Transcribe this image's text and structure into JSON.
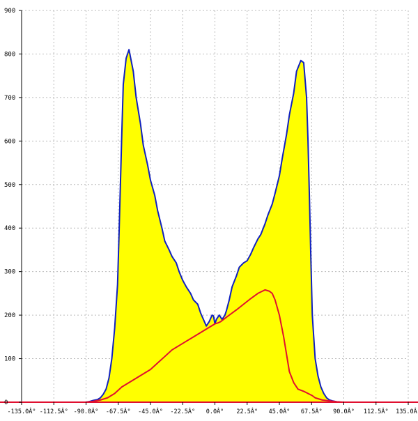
{
  "chart_data": {
    "type": "area",
    "title": "",
    "xlabel": "",
    "ylabel": "",
    "xlim": [
      -135,
      135
    ],
    "ylim": [
      0,
      900
    ],
    "x_ticks": [
      {
        "value": -135,
        "label": "-135.0Â°"
      },
      {
        "value": -112.5,
        "label": "-112.5Â°"
      },
      {
        "value": -90,
        "label": "-90.0Â°"
      },
      {
        "value": -67.5,
        "label": "-67.5Â°"
      },
      {
        "value": -45,
        "label": "-45.0Â°"
      },
      {
        "value": -22.5,
        "label": "-22.5Â°"
      },
      {
        "value": 0,
        "label": "0.0Â°"
      },
      {
        "value": 22.5,
        "label": "22.5Â°"
      },
      {
        "value": 45,
        "label": "45.0Â°"
      },
      {
        "value": 67.5,
        "label": "67.5Â°"
      },
      {
        "value": 90,
        "label": "90.0Â°"
      },
      {
        "value": 112.5,
        "label": "112.5Â°"
      },
      {
        "value": 135,
        "label": "135.0Â°"
      }
    ],
    "y_ticks": [
      {
        "value": 0,
        "label": "0"
      },
      {
        "value": 100,
        "label": "100"
      },
      {
        "value": 200,
        "label": "200"
      },
      {
        "value": 300,
        "label": "300"
      },
      {
        "value": 400,
        "label": "400"
      },
      {
        "value": 500,
        "label": "500"
      },
      {
        "value": 600,
        "label": "600"
      },
      {
        "value": 700,
        "label": "700"
      },
      {
        "value": 800,
        "label": "800"
      },
      {
        "value": 900,
        "label": "900"
      }
    ],
    "grid": true,
    "legend": "none",
    "colors": {
      "fill": "#ffff00",
      "outline": "#1020c0",
      "secondary_line": "#e01030",
      "grid": "#bbbbbb",
      "axis": "#000000"
    },
    "series": [
      {
        "values_x": [
          -135,
          -90,
          -87,
          -85,
          -82,
          -80,
          -78,
          -76,
          -74,
          -72,
          -70,
          -68,
          -67,
          -66,
          -65,
          -64,
          -62,
          -60,
          -57,
          -55,
          -52,
          -50,
          -47,
          -45,
          -42,
          -40,
          -37,
          -35,
          -32,
          -30,
          -27,
          -25,
          -22.5,
          -20,
          -17,
          -15,
          -12,
          -10,
          -8,
          -6,
          -4,
          -2,
          -1,
          0,
          1,
          2,
          3,
          4,
          5,
          6,
          7,
          8,
          10,
          12,
          15,
          17,
          20,
          22.5,
          25,
          27,
          30,
          32,
          35,
          37,
          40,
          42,
          45,
          47,
          50,
          52,
          55,
          57,
          60,
          62,
          64,
          65,
          66,
          67,
          68,
          70,
          72,
          74,
          76,
          78,
          80,
          82,
          85,
          88,
          90,
          135
        ],
        "values_y": [
          0,
          0,
          2,
          4,
          6,
          10,
          18,
          30,
          55,
          100,
          170,
          270,
          380,
          500,
          620,
          730,
          790,
          810,
          760,
          700,
          640,
          590,
          545,
          510,
          475,
          440,
          400,
          370,
          350,
          335,
          320,
          300,
          280,
          265,
          250,
          235,
          225,
          205,
          190,
          175,
          185,
          200,
          198,
          180,
          190,
          195,
          200,
          195,
          190,
          195,
          200,
          210,
          235,
          265,
          290,
          310,
          320,
          325,
          340,
          355,
          375,
          385,
          410,
          430,
          455,
          480,
          520,
          560,
          615,
          660,
          710,
          760,
          785,
          780,
          700,
          600,
          470,
          330,
          200,
          100,
          60,
          35,
          20,
          10,
          5,
          3,
          1,
          0,
          0,
          0
        ]
      },
      {
        "values_x": [
          -135,
          -90,
          -85,
          -80,
          -75,
          -70,
          -65,
          -60,
          -55,
          -50,
          -45,
          -40,
          -35,
          -30,
          -25,
          -20,
          -15,
          -10,
          -5,
          0,
          2,
          4,
          6,
          8,
          10,
          15,
          20,
          25,
          30,
          35,
          38,
          40,
          42,
          45,
          48,
          50,
          52,
          55,
          58,
          62,
          65,
          68,
          70,
          72,
          75,
          80,
          85,
          90,
          135
        ],
        "values_y": [
          0,
          0,
          2,
          5,
          10,
          20,
          35,
          45,
          55,
          65,
          75,
          90,
          105,
          120,
          130,
          140,
          150,
          160,
          170,
          180,
          182,
          185,
          190,
          195,
          200,
          212,
          225,
          238,
          250,
          258,
          255,
          250,
          235,
          200,
          150,
          110,
          70,
          45,
          30,
          25,
          20,
          15,
          10,
          8,
          5,
          3,
          1,
          0,
          0
        ]
      }
    ]
  }
}
